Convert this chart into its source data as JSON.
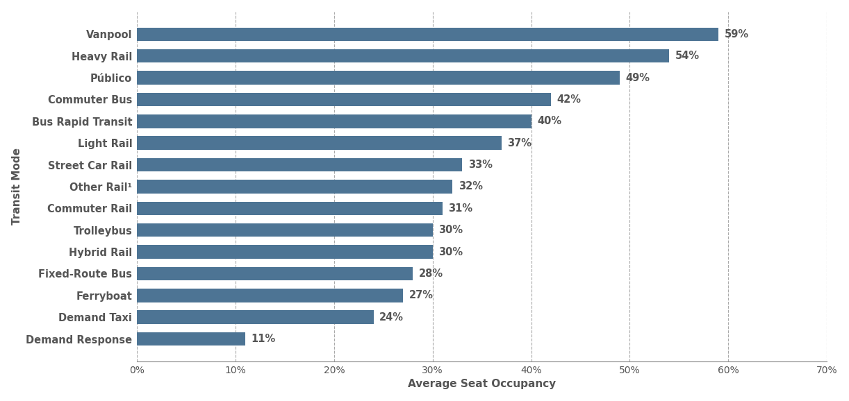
{
  "categories": [
    "Vanpool",
    "Heavy Rail",
    "Público",
    "Commuter Bus",
    "Bus Rapid Transit",
    "Light Rail",
    "Street Car Rail",
    "Other Rail¹",
    "Commuter Rail",
    "Trolleybus",
    "Hybrid Rail",
    "Fixed-Route Bus",
    "Ferryboat",
    "Demand Taxi",
    "Demand Response"
  ],
  "values": [
    59,
    54,
    49,
    42,
    40,
    37,
    33,
    32,
    31,
    30,
    30,
    28,
    27,
    24,
    11
  ],
  "bar_color": "#4d7494",
  "label_color": "#555555",
  "xlabel": "Average Seat Occupancy",
  "ylabel": "Transit Mode",
  "xlim": [
    0,
    70
  ],
  "xticks": [
    0,
    10,
    20,
    30,
    40,
    50,
    60,
    70
  ],
  "xtick_labels": [
    "0%",
    "10%",
    "20%",
    "30%",
    "40%",
    "50%",
    "60%",
    "70%"
  ],
  "grid_color": "#aaaaaa",
  "background_color": "#ffffff",
  "bar_height": 0.62,
  "label_fontsize": 10.5,
  "axis_label_fontsize": 11,
  "tick_fontsize": 10,
  "value_label_fontsize": 10.5
}
